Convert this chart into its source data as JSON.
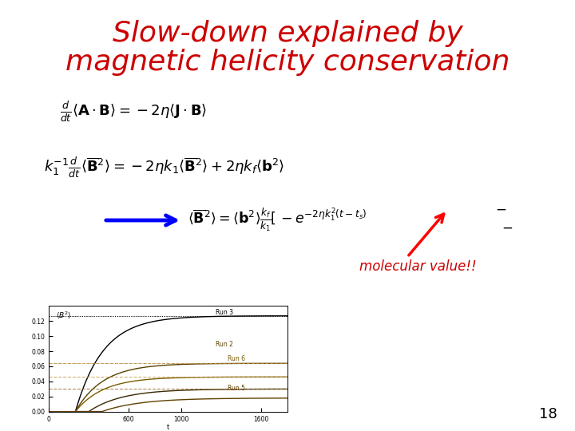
{
  "title_line1": "Slow-down explained by",
  "title_line2": "magnetic helicity conservation",
  "title_color": "#cc0000",
  "title_fontsize": 26,
  "background_color": "#ffffff",
  "molecular_label": "molecular value!!",
  "molecular_label_color": "#cc0000",
  "slide_number": "18",
  "slide_number_color": "#000000"
}
